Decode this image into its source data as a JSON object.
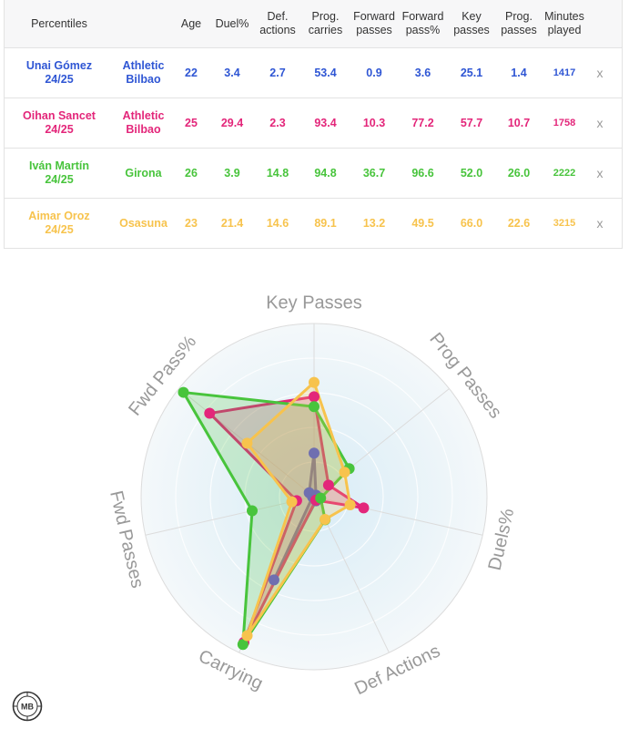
{
  "table": {
    "headers": {
      "percentiles": "Percentiles",
      "age": "Age",
      "duel": "Duel%",
      "def_line1": "Def.",
      "def_line2": "actions",
      "prog_line1": "Prog.",
      "prog_line2": "carries",
      "fwd_line1": "Forward",
      "fwd_line2": "passes",
      "fwdp_line1": "Forward",
      "fwdp_line2": "pass%",
      "key_line1": "Key",
      "key_line2": "passes",
      "pp_line1": "Prog.",
      "pp_line2": "passes",
      "min_line1": "Minutes",
      "min_line2": "played"
    },
    "remove_label": "x",
    "rows": [
      {
        "name": "Unai Gómez",
        "season": "24/25",
        "team_line1": "Athletic",
        "team_line2": "Bilbao",
        "age": "22",
        "duel": "3.4",
        "def": "2.7",
        "prog": "53.4",
        "fwd": "0.9",
        "fwdp": "3.6",
        "key": "25.1",
        "pp": "1.4",
        "min": "1417",
        "color": "#2f56d4"
      },
      {
        "name": "Oihan Sancet",
        "season": "24/25",
        "team_line1": "Athletic",
        "team_line2": "Bilbao",
        "age": "25",
        "duel": "29.4",
        "def": "2.3",
        "prog": "93.4",
        "fwd": "10.3",
        "fwdp": "77.2",
        "key": "57.7",
        "pp": "10.7",
        "min": "1758",
        "color": "#e3267a"
      },
      {
        "name": "Iván Martín",
        "season": "24/25",
        "team_line1": "Girona",
        "team_line2": "",
        "age": "26",
        "duel": "3.9",
        "def": "14.8",
        "prog": "94.8",
        "fwd": "36.7",
        "fwdp": "96.6",
        "key": "52.0",
        "pp": "26.0",
        "min": "2222",
        "color": "#48c43c"
      },
      {
        "name": "Aimar Oroz",
        "season": "24/25",
        "team_line1": "Osasuna",
        "team_line2": "",
        "age": "23",
        "duel": "21.4",
        "def": "14.6",
        "prog": "89.1",
        "fwd": "13.2",
        "fwdp": "49.5",
        "key": "66.0",
        "pp": "22.6",
        "min": "3215",
        "color": "#f7c34d"
      }
    ]
  },
  "chart_data": {
    "type": "radar",
    "axes": [
      "Key Passes",
      "Prog Passes",
      "Duels%",
      "Def Actions",
      "Carrying",
      "Fwd Passes",
      "Fwd Pass%"
    ],
    "range": [
      0,
      100
    ],
    "grid": true,
    "series": [
      {
        "name": "Unai Gómez",
        "color": "#6f6fb0",
        "values": [
          25.1,
          1.4,
          3.4,
          2.7,
          53.4,
          0.9,
          3.6
        ]
      },
      {
        "name": "Oihan Sancet",
        "color": "#e3267a",
        "values": [
          57.7,
          10.7,
          29.4,
          2.3,
          93.4,
          10.3,
          77.2
        ]
      },
      {
        "name": "Iván Martín",
        "color": "#48c43c",
        "values": [
          52.0,
          26.0,
          3.9,
          14.8,
          94.8,
          36.7,
          96.6
        ]
      },
      {
        "name": "Aimar Oroz",
        "color": "#f7c34d",
        "values": [
          66.0,
          22.6,
          21.4,
          14.6,
          89.1,
          13.2,
          49.5
        ]
      }
    ]
  },
  "logo_text": "MB"
}
